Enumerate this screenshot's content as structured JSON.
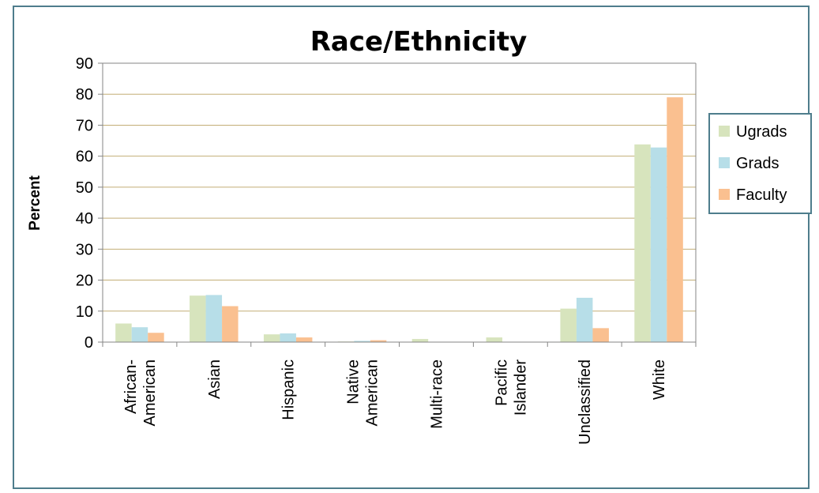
{
  "chart_data": {
    "type": "bar",
    "title": "Race/Ethnicity",
    "xlabel": "",
    "ylabel": "Percent",
    "ylim": [
      0,
      90
    ],
    "yticks": [
      0,
      10,
      20,
      30,
      40,
      50,
      60,
      70,
      80,
      90
    ],
    "grid": true,
    "legend_position": "right",
    "categories": [
      [
        "African-",
        "American"
      ],
      [
        "Asian"
      ],
      [
        "Hispanic"
      ],
      [
        "Native",
        "American"
      ],
      [
        "Multi-race"
      ],
      [
        "Pacific",
        "Islander"
      ],
      [
        "Unclassified"
      ],
      [
        "White"
      ]
    ],
    "series": [
      {
        "name": "Ugrads",
        "color": "#d7e4bd",
        "values": [
          6.0,
          15.0,
          2.5,
          0.2,
          1.0,
          1.5,
          10.8,
          63.8
        ]
      },
      {
        "name": "Grads",
        "color": "#b7dee8",
        "values": [
          4.8,
          15.2,
          2.8,
          0.4,
          0.1,
          0.1,
          14.3,
          62.8
        ]
      },
      {
        "name": "Faculty",
        "color": "#fac090",
        "values": [
          3.0,
          11.6,
          1.5,
          0.6,
          0.0,
          0.0,
          4.5,
          79.0
        ]
      }
    ]
  }
}
